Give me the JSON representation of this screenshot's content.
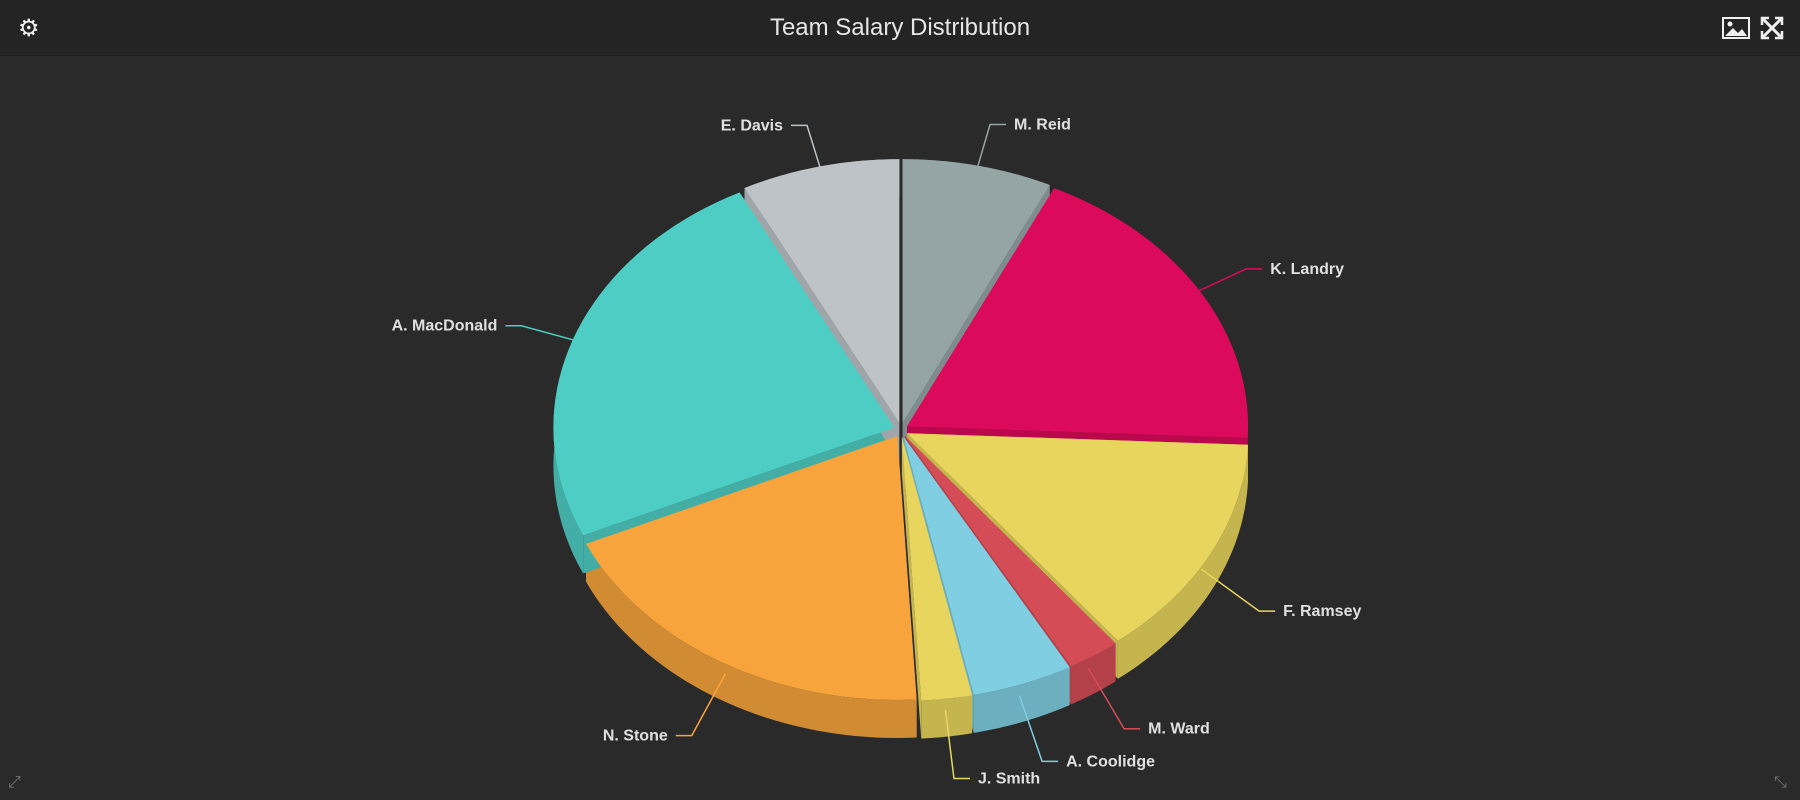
{
  "header": {
    "title": "Team Salary Distribution",
    "settings_icon": "gear-icon",
    "export_icon": "image-icon",
    "fullscreen_icon": "expand-icon"
  },
  "chart_data": {
    "type": "pie",
    "title": "Team Salary Distribution",
    "style": "3d-exploded",
    "slices": [
      {
        "label": "M. Reid",
        "value": 7.1,
        "color": "#95a5a6"
      },
      {
        "label": "K. Landry",
        "value": 18.6,
        "color": "#dc0a5a"
      },
      {
        "label": "F. Ramsey",
        "value": 13.7,
        "color": "#e8d55e"
      },
      {
        "label": "M. Ward",
        "value": 2.5,
        "color": "#d44c56"
      },
      {
        "label": "A. Coolidge",
        "value": 4.8,
        "color": "#80cee1"
      },
      {
        "label": "J. Smith",
        "value": 2.4,
        "color": "#e8d55e"
      },
      {
        "label": "N. Stone",
        "value": 19.2,
        "color": "#f7a43c"
      },
      {
        "label": "A. MacDonald",
        "value": 24.2,
        "color": "#4ecdc4"
      },
      {
        "label": "E. Davis",
        "value": 7.5,
        "color": "#bdc3c7"
      }
    ]
  }
}
